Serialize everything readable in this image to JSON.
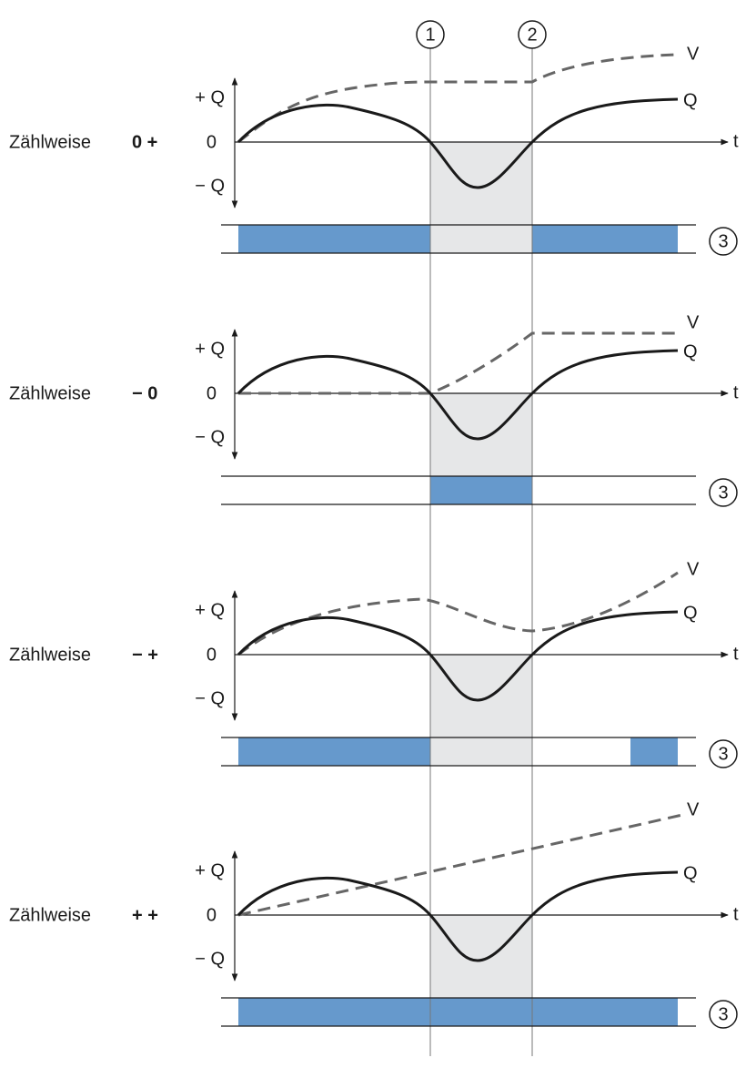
{
  "markers": [
    "1",
    "2"
  ],
  "panels": [
    {
      "label": "Zählweise",
      "mode": "0 +",
      "plus_q": "+ Q",
      "zero": "0",
      "minus_q": "− Q",
      "t": "t",
      "v": "V",
      "q": "Q",
      "output": "3"
    },
    {
      "label": "Zählweise",
      "mode": "− 0",
      "plus_q": "+ Q",
      "zero": "0",
      "minus_q": "− Q",
      "t": "t",
      "v": "V",
      "q": "Q",
      "output": "3"
    },
    {
      "label": "Zählweise",
      "mode": "− +",
      "plus_q": "+ Q",
      "zero": "0",
      "minus_q": "− Q",
      "t": "t",
      "v": "V",
      "q": "Q",
      "output": "3"
    },
    {
      "label": "Zählweise",
      "mode": "+ +",
      "plus_q": "+ Q",
      "zero": "0",
      "minus_q": "− Q",
      "t": "t",
      "v": "V",
      "q": "Q",
      "output": "3"
    }
  ]
}
